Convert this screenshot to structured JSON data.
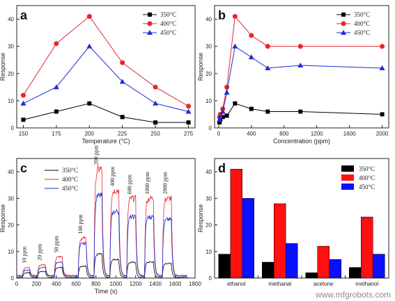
{
  "watermark": "www.mfgrobots.com",
  "colors": {
    "s350": "#000000",
    "s400": "#e8252b",
    "s450": "#1f2bd6",
    "axis": "#222222"
  },
  "chart_data": [
    {
      "panel": "a",
      "type": "line",
      "xlabel": "Temperature (°C)",
      "ylabel": "Response",
      "xlim": [
        145,
        280
      ],
      "ylim": [
        0,
        45
      ],
      "xticks": [
        150,
        175,
        200,
        225,
        250,
        275
      ],
      "yticks": [
        0,
        10,
        20,
        30,
        40
      ],
      "x": [
        150,
        175,
        200,
        225,
        250,
        275
      ],
      "legend_position": "top-right",
      "series": [
        {
          "name": "350°C",
          "values": [
            3,
            6,
            9,
            4,
            2,
            2
          ],
          "marker": "square",
          "color": "#000000"
        },
        {
          "name": "400°C",
          "values": [
            12,
            31,
            41,
            24,
            15,
            8
          ],
          "marker": "circle",
          "color": "#e8252b"
        },
        {
          "name": "450°C",
          "values": [
            9,
            15,
            30,
            17,
            9,
            6
          ],
          "marker": "triangle",
          "color": "#1f2bd6"
        }
      ]
    },
    {
      "panel": "b",
      "type": "line",
      "xlabel": "Concentration (ppm)",
      "ylabel": "Response",
      "xlim": [
        -50,
        2080
      ],
      "ylim": [
        0,
        45
      ],
      "xticks": [
        0,
        400,
        800,
        1200,
        1600,
        2000
      ],
      "yticks": [
        0,
        10,
        20,
        30,
        40
      ],
      "legend_position": "top-right",
      "series": [
        {
          "name": "350°C",
          "x": [
            10,
            20,
            50,
            100,
            200,
            400,
            600,
            1000,
            2000
          ],
          "values": [
            2,
            3,
            4,
            4.5,
            9,
            7,
            6,
            6,
            5
          ],
          "marker": "square",
          "color": "#000000"
        },
        {
          "name": "400°C",
          "x": [
            10,
            20,
            50,
            100,
            200,
            400,
            600,
            1000,
            2000
          ],
          "values": [
            4,
            5,
            7,
            15,
            41,
            34,
            30,
            30,
            30
          ],
          "marker": "circle",
          "color": "#e8252b"
        },
        {
          "name": "450°C",
          "x": [
            10,
            20,
            50,
            100,
            200,
            400,
            600,
            1000,
            2000
          ],
          "values": [
            3,
            4,
            6,
            13,
            30,
            26,
            22,
            23,
            22
          ],
          "marker": "triangle",
          "color": "#1f2bd6"
        }
      ]
    },
    {
      "panel": "c",
      "type": "line",
      "xlabel": "Time (s)",
      "ylabel": "Response",
      "xlim": [
        0,
        1800
      ],
      "ylim": [
        0,
        45
      ],
      "xticks": [
        0,
        200,
        400,
        600,
        800,
        1000,
        1200,
        1400,
        1600,
        1800
      ],
      "yticks": [
        0,
        10,
        20,
        30,
        40
      ],
      "legend_position": "top-left",
      "annotations": [
        "10 ppm",
        "20 ppm",
        "50 ppm",
        "100 ppm",
        "200 ppm",
        "400 ppm",
        "600 ppm",
        "1000 ppm",
        "2000 ppm"
      ],
      "pulses": [
        {
          "start": 60,
          "end": 130,
          "peaks": [
            2,
            4,
            3
          ]
        },
        {
          "start": 210,
          "end": 290,
          "peaks": [
            2.5,
            5,
            4
          ]
        },
        {
          "start": 380,
          "end": 460,
          "peaks": [
            4,
            8,
            6
          ]
        },
        {
          "start": 620,
          "end": 700,
          "peaks": [
            4.5,
            15,
            13
          ]
        },
        {
          "start": 780,
          "end": 860,
          "peaks": [
            9,
            41,
            31
          ]
        },
        {
          "start": 940,
          "end": 1030,
          "peaks": [
            7,
            33,
            25
          ]
        },
        {
          "start": 1110,
          "end": 1200,
          "peaks": [
            6,
            30,
            23
          ]
        },
        {
          "start": 1290,
          "end": 1380,
          "peaks": [
            6,
            30,
            23
          ]
        },
        {
          "start": 1470,
          "end": 1560,
          "peaks": [
            5.5,
            30,
            22
          ]
        }
      ],
      "series": [
        {
          "name": "350°C",
          "color": "#000000"
        },
        {
          "name": "400°C",
          "color": "#e8252b"
        },
        {
          "name": "450°C",
          "color": "#1f2bd6"
        }
      ]
    },
    {
      "panel": "d",
      "type": "bar",
      "xlabel": "",
      "ylabel": "Response",
      "ylim": [
        0,
        45
      ],
      "yticks": [
        0,
        10,
        20,
        30,
        40
      ],
      "categories": [
        "ethanol",
        "methanal",
        "acetone",
        "methanol"
      ],
      "legend_position": "top-right",
      "series": [
        {
          "name": "350°C",
          "values": [
            9,
            6,
            2,
            4
          ],
          "color": "#000000"
        },
        {
          "name": "400°C",
          "values": [
            41,
            28,
            12,
            23
          ],
          "color": "#ff1010"
        },
        {
          "name": "450°C",
          "values": [
            30,
            13,
            7,
            9
          ],
          "color": "#0a10ff"
        }
      ]
    }
  ]
}
